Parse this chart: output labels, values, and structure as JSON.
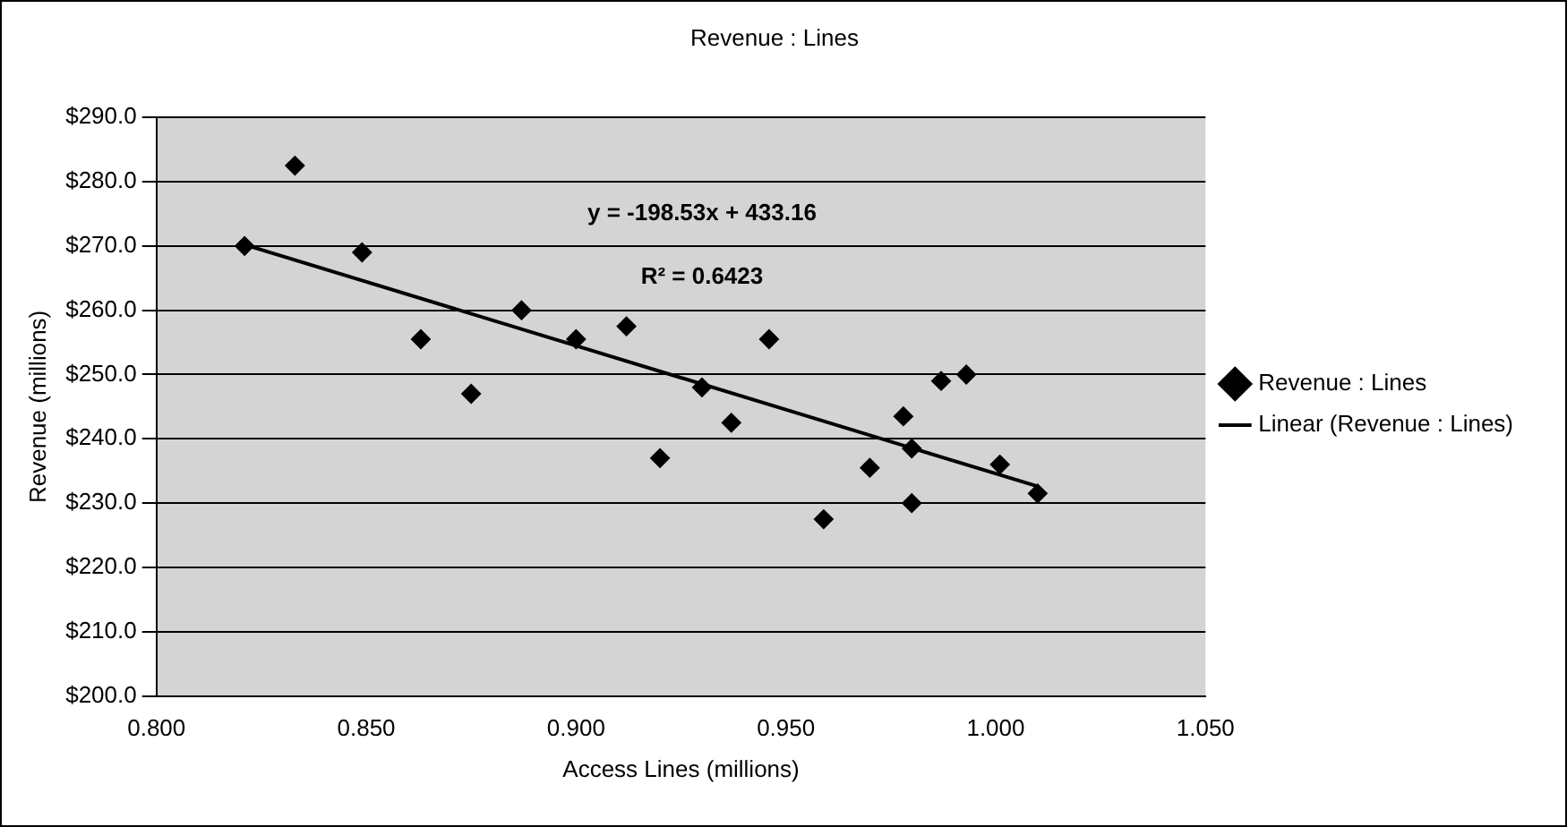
{
  "chart_data": {
    "type": "scatter",
    "title": "Revenue : Lines",
    "xlabel": "Access Lines (millions)",
    "ylabel": "Revenue (millions)",
    "series": [
      {
        "name": "Revenue : Lines",
        "type": "scatter",
        "color": "#000000",
        "marker": "diamond",
        "x": [
          0.821,
          0.833,
          0.849,
          0.863,
          0.875,
          0.887,
          0.9,
          0.912,
          0.92,
          0.93,
          0.937,
          0.946,
          0.959,
          0.97,
          0.978,
          0.98,
          0.98,
          0.987,
          0.993,
          1.001,
          1.01
        ],
        "values": [
          270,
          282.5,
          269,
          255.5,
          247,
          260,
          255.5,
          257.5,
          237,
          248,
          242.5,
          255.5,
          227.5,
          235.5,
          243.5,
          230,
          238.5,
          249,
          250,
          236,
          231.5
        ]
      },
      {
        "name": "Linear (Revenue : Lines)",
        "type": "line",
        "color": "#000000",
        "marker": "none",
        "line_style": "solid",
        "x": [
          0.821,
          1.01
        ],
        "values": [
          270.2,
          232.6
        ]
      }
    ],
    "xlim": [
      0.8,
      1.05
    ],
    "xticks": [
      {
        "value": 0.8,
        "label": "0.800"
      },
      {
        "value": 0.85,
        "label": "0.850"
      },
      {
        "value": 0.9,
        "label": "0.900"
      },
      {
        "value": 0.95,
        "label": "0.950"
      },
      {
        "value": 1.0,
        "label": "1.000"
      },
      {
        "value": 1.05,
        "label": "1.050"
      }
    ],
    "ylim": [
      200,
      290
    ],
    "yticks": [
      {
        "value": 200,
        "label": "$200.0"
      },
      {
        "value": 210,
        "label": "$210.0"
      },
      {
        "value": 220,
        "label": "$220.0"
      },
      {
        "value": 230,
        "label": "$230.0"
      },
      {
        "value": 240,
        "label": "$240.0"
      },
      {
        "value": 250,
        "label": "$250.0"
      },
      {
        "value": 260,
        "label": "$260.0"
      },
      {
        "value": 270,
        "label": "$270.0"
      },
      {
        "value": 280,
        "label": "$280.0"
      },
      {
        "value": 290,
        "label": "$290.0"
      }
    ],
    "annotations": [
      "y = -198.53x + 433.16",
      "R² = 0.6423"
    ],
    "grid": "y",
    "legend": "right"
  }
}
